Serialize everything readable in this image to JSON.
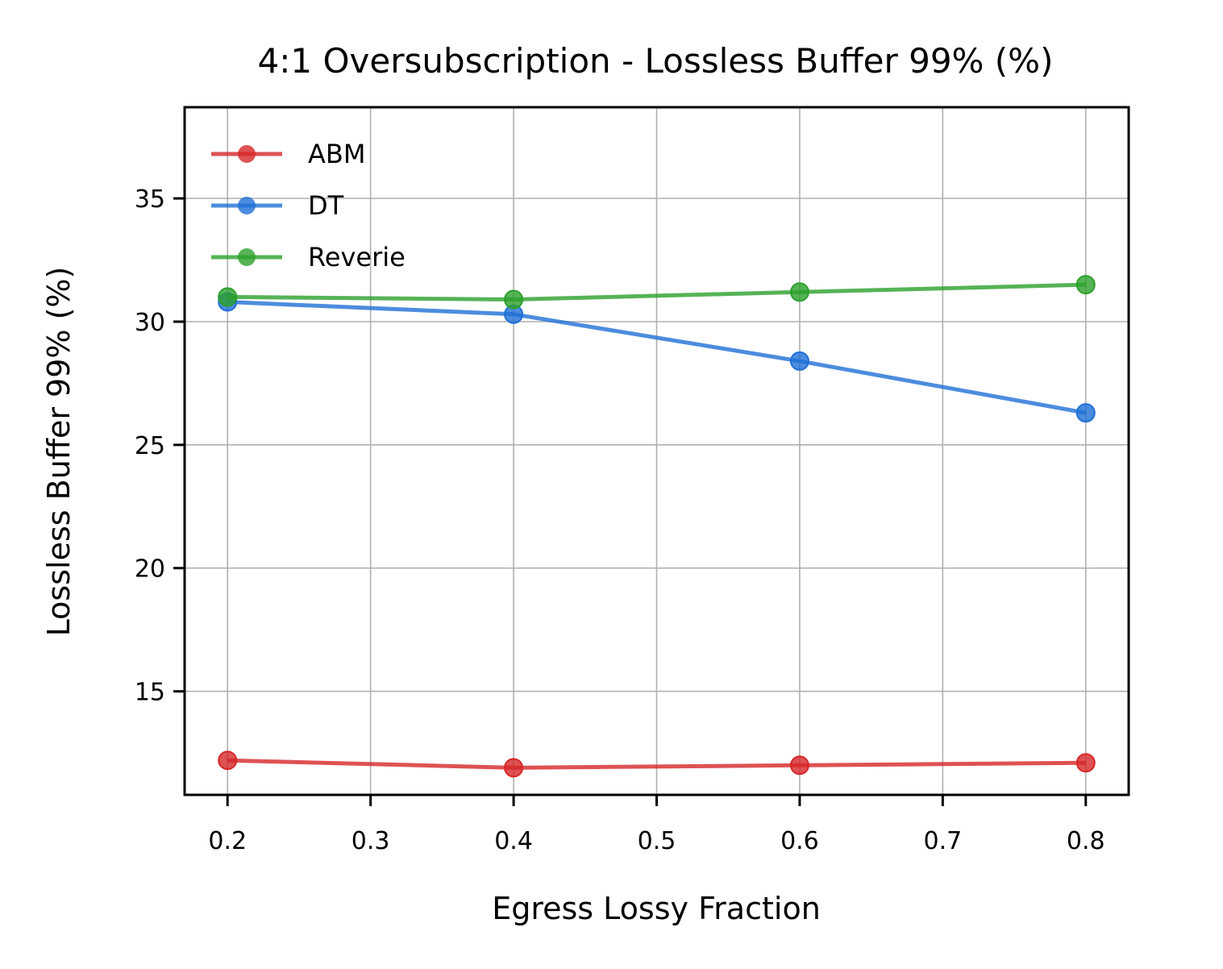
{
  "chart_data": {
    "type": "line",
    "title": "4:1 Oversubscription - Lossless Buffer 99% (%)",
    "xlabel": "Egress Lossy Fraction",
    "ylabel": "Lossless Buffer 99% (%)",
    "xlim": [
      0.17,
      0.83
    ],
    "ylim": [
      10.8,
      38.7
    ],
    "xticks": [
      0.2,
      0.3,
      0.4,
      0.5,
      0.6,
      0.7,
      0.8
    ],
    "xtick_labels": [
      "0.2",
      "0.3",
      "0.4",
      "0.5",
      "0.6",
      "0.7",
      "0.8"
    ],
    "yticks": [
      15,
      20,
      25,
      30,
      35
    ],
    "ytick_labels": [
      "15",
      "20",
      "25",
      "30",
      "35"
    ],
    "grid": true,
    "legend_position": "top-left",
    "x": [
      0.2,
      0.4,
      0.6,
      0.8
    ],
    "series": [
      {
        "name": "ABM",
        "color": "#d62728",
        "values": [
          12.2,
          11.9,
          12.0,
          12.1
        ]
      },
      {
        "name": "DT",
        "color": "#1f6fd6",
        "values": [
          30.8,
          30.3,
          28.4,
          26.3
        ]
      },
      {
        "name": "Reverie",
        "color": "#2ca02c",
        "values": [
          31.0,
          30.9,
          31.2,
          31.5
        ]
      }
    ]
  }
}
